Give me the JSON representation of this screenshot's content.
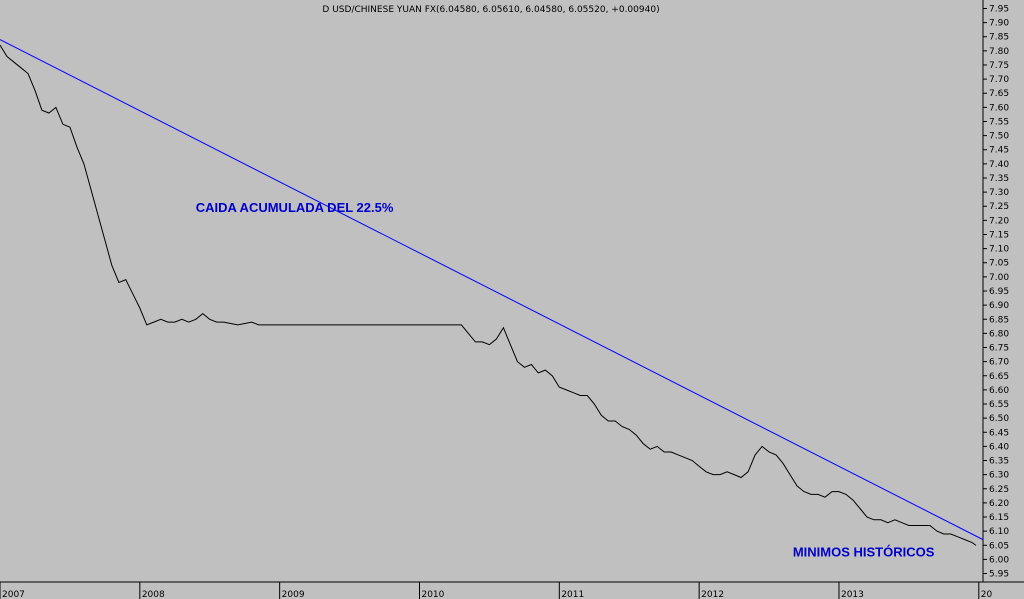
{
  "chart_data": {
    "type": "line",
    "title": "D USD/CHINESE YUAN FX(6.04580, 6.05610, 6.04580, 6.05520, +0.00940)",
    "x_tick_labels": [
      "2007",
      "2008",
      "2009",
      "2010",
      "2011",
      "2012",
      "2013",
      "20"
    ],
    "y_tick_labels": [
      "5.95",
      "6.00",
      "6.05",
      "6.10",
      "6.15",
      "6.20",
      "6.25",
      "6.30",
      "6.35",
      "6.40",
      "6.45",
      "6.50",
      "6.55",
      "6.60",
      "6.65",
      "6.70",
      "6.75",
      "6.80",
      "6.85",
      "6.90",
      "6.95",
      "7.00",
      "7.05",
      "7.10",
      "7.15",
      "7.20",
      "7.25",
      "7.30",
      "7.35",
      "7.40",
      "7.45",
      "7.50",
      "7.55",
      "7.60",
      "7.65",
      "7.70",
      "7.75",
      "7.80",
      "7.85",
      "7.90",
      "7.95"
    ],
    "ylim": [
      5.92,
      7.98
    ],
    "xlim": [
      2007.0,
      2014.03
    ],
    "grid": false,
    "line_color": "#000000",
    "trendline_color": "#0000ff",
    "annotation_color": "#0000cc",
    "series": [
      {
        "x": [
          2007.0,
          2007.05,
          2007.1,
          2007.15,
          2007.2,
          2007.25,
          2007.3,
          2007.35,
          2007.4,
          2007.45,
          2007.5,
          2007.55,
          2007.6,
          2007.65,
          2007.7,
          2007.75,
          2007.8,
          2007.85,
          2007.9,
          2007.95,
          2008.0,
          2008.05,
          2008.1,
          2008.15,
          2008.2,
          2008.25,
          2008.3,
          2008.35,
          2008.4,
          2008.45,
          2008.5,
          2008.55,
          2008.6,
          2008.7,
          2008.8,
          2008.85,
          2008.9,
          2009.0,
          2009.2,
          2009.4,
          2009.6,
          2009.8,
          2010.0,
          2010.2,
          2010.3,
          2010.35,
          2010.4,
          2010.45,
          2010.5,
          2010.55,
          2010.6,
          2010.65,
          2010.7,
          2010.75,
          2010.8,
          2010.85,
          2010.9,
          2010.95,
          2011.0,
          2011.05,
          2011.1,
          2011.15,
          2011.2,
          2011.25,
          2011.3,
          2011.35,
          2011.4,
          2011.45,
          2011.5,
          2011.55,
          2011.6,
          2011.65,
          2011.7,
          2011.75,
          2011.8,
          2011.85,
          2011.9,
          2011.95,
          2012.0,
          2012.05,
          2012.1,
          2012.15,
          2012.2,
          2012.25,
          2012.3,
          2012.35,
          2012.4,
          2012.45,
          2012.5,
          2012.55,
          2012.6,
          2012.65,
          2012.7,
          2012.75,
          2012.8,
          2012.85,
          2012.9,
          2012.95,
          2013.0,
          2013.05,
          2013.1,
          2013.15,
          2013.2,
          2013.25,
          2013.3,
          2013.35,
          2013.4,
          2013.45,
          2013.5,
          2013.55,
          2013.6,
          2013.65,
          2013.7,
          2013.75,
          2013.8,
          2013.85,
          2013.9,
          2013.95,
          2013.98
        ],
        "values": [
          7.82,
          7.78,
          7.76,
          7.74,
          7.72,
          7.66,
          7.59,
          7.58,
          7.6,
          7.54,
          7.53,
          7.46,
          7.4,
          7.31,
          7.22,
          7.13,
          7.04,
          6.98,
          6.99,
          6.94,
          6.89,
          6.83,
          6.84,
          6.85,
          6.84,
          6.84,
          6.85,
          6.84,
          6.85,
          6.87,
          6.85,
          6.84,
          6.84,
          6.83,
          6.84,
          6.83,
          6.83,
          6.83,
          6.83,
          6.83,
          6.83,
          6.83,
          6.83,
          6.83,
          6.83,
          6.8,
          6.77,
          6.77,
          6.76,
          6.78,
          6.82,
          6.76,
          6.7,
          6.68,
          6.69,
          6.66,
          6.67,
          6.65,
          6.61,
          6.6,
          6.59,
          6.58,
          6.58,
          6.55,
          6.51,
          6.49,
          6.49,
          6.47,
          6.46,
          6.44,
          6.41,
          6.39,
          6.4,
          6.38,
          6.38,
          6.37,
          6.36,
          6.35,
          6.33,
          6.31,
          6.3,
          6.3,
          6.31,
          6.3,
          6.29,
          6.31,
          6.37,
          6.4,
          6.38,
          6.37,
          6.34,
          6.3,
          6.26,
          6.24,
          6.23,
          6.23,
          6.22,
          6.24,
          6.24,
          6.23,
          6.21,
          6.18,
          6.15,
          6.14,
          6.14,
          6.13,
          6.14,
          6.13,
          6.12,
          6.12,
          6.12,
          6.12,
          6.1,
          6.09,
          6.09,
          6.08,
          6.07,
          6.06,
          6.05
        ]
      }
    ],
    "trendline": {
      "x": [
        2007.0,
        2014.03
      ],
      "values": [
        7.84,
        6.07
      ]
    },
    "annotations": [
      {
        "text": "CAIDA ACUMULADA DEL 22.5%",
        "x": 2008.4,
        "y": 7.23
      },
      {
        "text": "MINIMOS HISTÓRICOS",
        "x": 2012.67,
        "y": 6.01
      }
    ]
  }
}
